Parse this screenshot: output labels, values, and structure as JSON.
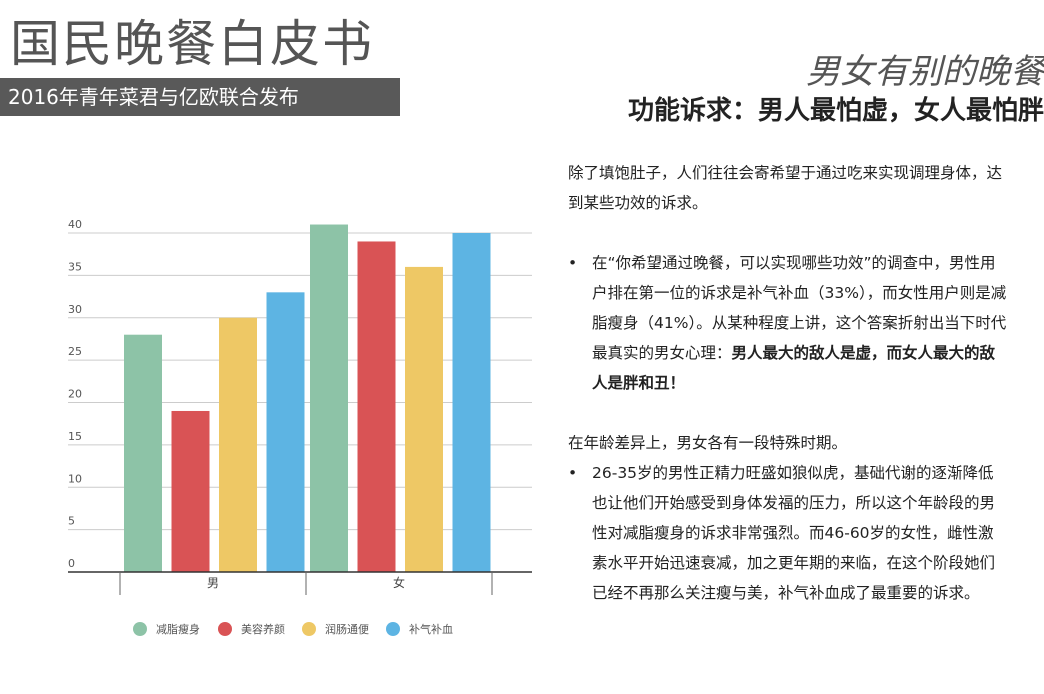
{
  "header": {
    "title": "国民晚餐白皮书",
    "subtitle": "2016年青年菜君与亿欧联合发布",
    "section": "男女有别的晚餐",
    "headline": "功能诉求：男人最怕虚，女人最怕胖"
  },
  "body": {
    "p1": "除了填饱肚子，人们往往会寄希望于通过吃来实现调理身体，达到某些功效的诉求。",
    "b1": "在“你希望通过晚餐，可以实现哪些功效”的调查中，男性用户排在第一位的诉求是补气补血（33%），而女性用户则是减脂瘦身（41%）。从某种程度上讲，这个答案折射出当下时代最真实的男女心理：",
    "b1_bold": "男人最大的敌人是虚，而女人最大的敌人是胖和丑！",
    "p2": "在年龄差异上，男女各有一段特殊时期。",
    "b2": "26-35岁的男性正精力旺盛如狼似虎，基础代谢的逐渐降低也让他们开始感受到身体发福的压力，所以这个年龄段的男性对减脂瘦身的诉求非常强烈。而46-60岁的女性，雌性激素水平开始迅速衰减，加之更年期的来临，在这个阶段她们已经不再那么关注瘦与美，补气补血成了最重要的诉求。",
    "bullet": "•"
  },
  "chart_data": {
    "type": "bar",
    "categories": [
      "男",
      "女"
    ],
    "series": [
      {
        "name": "减脂瘦身",
        "values": [
          28,
          41
        ],
        "color": "#8dc3a7"
      },
      {
        "name": "美容养颜",
        "values": [
          19,
          39
        ],
        "color": "#d95355"
      },
      {
        "name": "润肠通便",
        "values": [
          30,
          36
        ],
        "color": "#eec865"
      },
      {
        "name": "补气补血",
        "values": [
          33,
          40
        ],
        "color": "#5db4e3"
      }
    ],
    "yticks": [
      0,
      5,
      10,
      15,
      20,
      25,
      30,
      35,
      40
    ],
    "ylim": [
      0,
      40
    ],
    "grid": true,
    "legend": "bottom"
  }
}
